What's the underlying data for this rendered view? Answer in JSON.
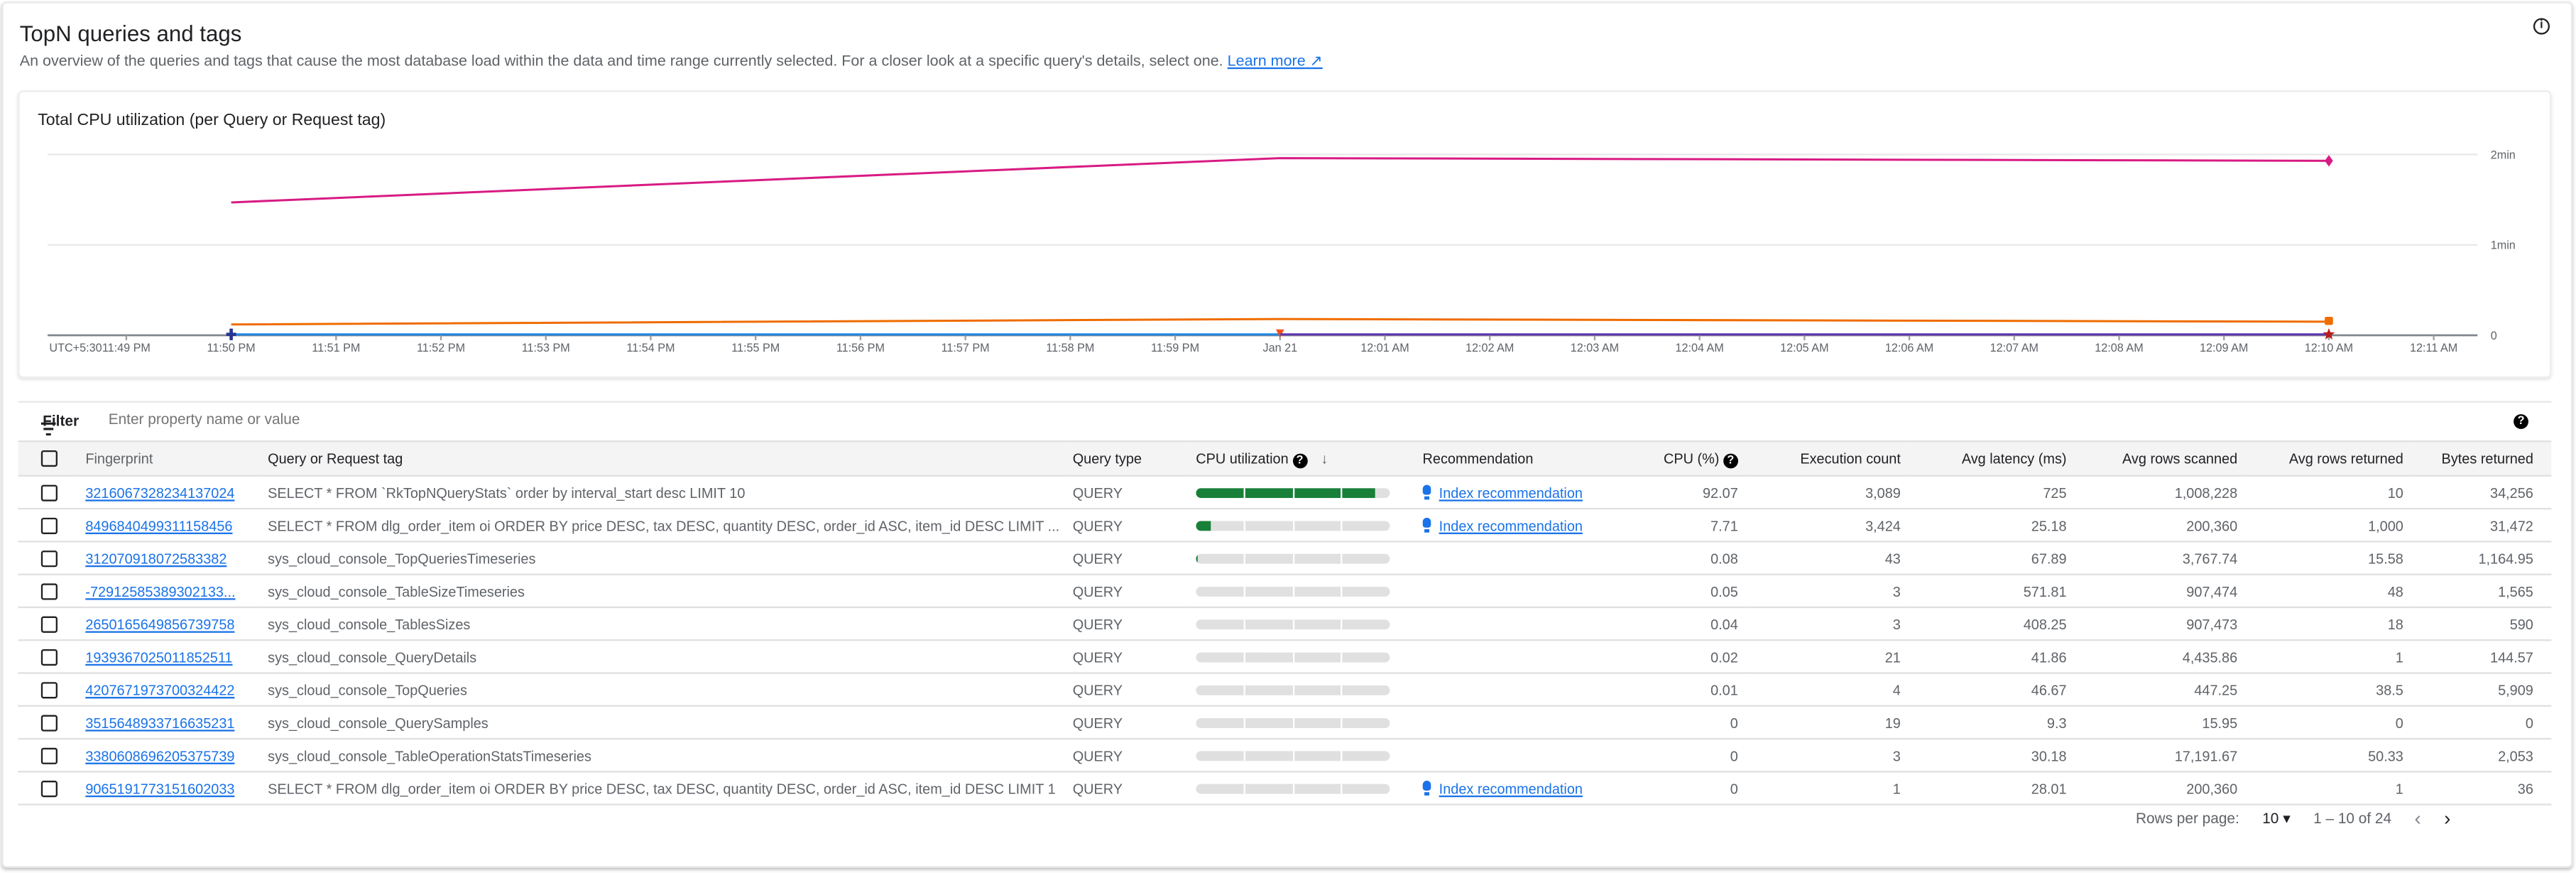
{
  "header": {
    "title": "TopN queries and tags",
    "description": "An overview of the queries and tags that cause the most database load within the data and time range currently selected. For a closer look at a specific query's details, select one.",
    "learn_more": "Learn more",
    "info_icon": "info-icon"
  },
  "chart_data": {
    "type": "line",
    "title": "Total CPU utilization (per Query or Request tag)",
    "timezone_label": "UTC+5:30",
    "x_ticks": [
      "11:49 PM",
      "11:50 PM",
      "11:51 PM",
      "11:52 PM",
      "11:53 PM",
      "11:54 PM",
      "11:55 PM",
      "11:56 PM",
      "11:57 PM",
      "11:58 PM",
      "11:59 PM",
      "Jan 21",
      "12:01 AM",
      "12:02 AM",
      "12:03 AM",
      "12:04 AM",
      "12:05 AM",
      "12:06 AM",
      "12:07 AM",
      "12:08 AM",
      "12:09 AM",
      "12:10 AM",
      "12:11 AM"
    ],
    "y_ticks": [
      "0",
      "1min",
      "2min"
    ],
    "y_unit": "min",
    "xlim": [
      "11:48:15 PM",
      "12:11:25 AM"
    ],
    "ylim": [
      0,
      2
    ],
    "grid": true,
    "series": [
      {
        "color": "#d81b84",
        "marker": "diamond",
        "x": [
          "11:50 PM",
          "Jan 21",
          "12:10 AM"
        ],
        "values": [
          1.47,
          1.96,
          1.93
        ]
      },
      {
        "color": "#ef6c00",
        "marker": "square",
        "x": [
          "11:50 PM",
          "Jan 21",
          "12:10 AM"
        ],
        "values": [
          0.12,
          0.18,
          0.15
        ]
      },
      {
        "color": "#1e88e5",
        "marker": "plus",
        "x": [
          "11:50 PM",
          "Jan 21"
        ],
        "values": [
          0.01,
          0.01
        ]
      },
      {
        "color": "#5e35b1",
        "marker": "star",
        "x": [
          "Jan 21",
          "12:10 AM"
        ],
        "values": [
          0.01,
          0.01
        ]
      }
    ]
  },
  "filter": {
    "label": "Filter",
    "placeholder": "Enter property name or value"
  },
  "table": {
    "columns": [
      "Fingerprint",
      "Query or Request tag",
      "Query type",
      "CPU utilization",
      "Recommendation",
      "CPU (%)",
      "Execution count",
      "Avg latency (ms)",
      "Avg rows scanned",
      "Avg rows returned",
      "Bytes returned"
    ],
    "rows": [
      {
        "fingerprint": "3216067328234137024",
        "query": "SELECT * FROM `RkTopNQueryStats` order by interval_start desc LIMIT 10",
        "type": "QUERY",
        "cpu_fraction": 0.9207,
        "recommendation": "Index recommendation",
        "cpu": "92.07",
        "exec": "3,089",
        "latency": "725",
        "scanned": "1,008,228",
        "returned": "10",
        "bytes": "34,256"
      },
      {
        "fingerprint": "8496840499311158456",
        "query": "SELECT * FROM dlg_order_item oi ORDER BY price DESC, tax DESC, quantity DESC, order_id ASC, item_id DESC LIMIT ...",
        "type": "QUERY",
        "cpu_fraction": 0.0771,
        "recommendation": "Index recommendation",
        "cpu": "7.71",
        "exec": "3,424",
        "latency": "25.18",
        "scanned": "200,360",
        "returned": "1,000",
        "bytes": "31,472"
      },
      {
        "fingerprint": "312070918072583382",
        "query": "sys_cloud_console_TopQueriesTimeseries",
        "type": "QUERY",
        "cpu_fraction": 0.0008,
        "recommendation": "",
        "cpu": "0.08",
        "exec": "43",
        "latency": "67.89",
        "scanned": "3,767.74",
        "returned": "15.58",
        "bytes": "1,164.95"
      },
      {
        "fingerprint": "-72912585389302133...",
        "query": "sys_cloud_console_TableSizeTimeseries",
        "type": "QUERY",
        "cpu_fraction": 0.0005,
        "recommendation": "",
        "cpu": "0.05",
        "exec": "3",
        "latency": "571.81",
        "scanned": "907,474",
        "returned": "48",
        "bytes": "1,565"
      },
      {
        "fingerprint": "2650165649856739758",
        "query": "sys_cloud_console_TablesSizes",
        "type": "QUERY",
        "cpu_fraction": 0.0004,
        "recommendation": "",
        "cpu": "0.04",
        "exec": "3",
        "latency": "408.25",
        "scanned": "907,473",
        "returned": "18",
        "bytes": "590"
      },
      {
        "fingerprint": "1939367025011852511",
        "query": "sys_cloud_console_QueryDetails",
        "type": "QUERY",
        "cpu_fraction": 0.0002,
        "recommendation": "",
        "cpu": "0.02",
        "exec": "21",
        "latency": "41.86",
        "scanned": "4,435.86",
        "returned": "1",
        "bytes": "144.57"
      },
      {
        "fingerprint": "4207671973700324422",
        "query": "sys_cloud_console_TopQueries",
        "type": "QUERY",
        "cpu_fraction": 0.0001,
        "recommendation": "",
        "cpu": "0.01",
        "exec": "4",
        "latency": "46.67",
        "scanned": "447.25",
        "returned": "38.5",
        "bytes": "5,909"
      },
      {
        "fingerprint": "3515648933716635231",
        "query": "sys_cloud_console_QuerySamples",
        "type": "QUERY",
        "cpu_fraction": 0,
        "recommendation": "",
        "cpu": "0",
        "exec": "19",
        "latency": "9.3",
        "scanned": "15.95",
        "returned": "0",
        "bytes": "0"
      },
      {
        "fingerprint": "3380608696205375739",
        "query": "sys_cloud_console_TableOperationStatsTimeseries",
        "type": "QUERY",
        "cpu_fraction": 0,
        "recommendation": "",
        "cpu": "0",
        "exec": "3",
        "latency": "30.18",
        "scanned": "17,191.67",
        "returned": "50.33",
        "bytes": "2,053"
      },
      {
        "fingerprint": "9065191773151602033",
        "query": "SELECT * FROM dlg_order_item oi ORDER BY price DESC, tax DESC, quantity DESC, order_id ASC, item_id DESC LIMIT 1",
        "type": "QUERY",
        "cpu_fraction": 0,
        "recommendation": "Index recommendation",
        "cpu": "0",
        "exec": "1",
        "latency": "28.01",
        "scanned": "200,360",
        "returned": "1",
        "bytes": "36"
      }
    ]
  },
  "pagination": {
    "rows_per_page_label": "Rows per page:",
    "rows_per_page": "10",
    "range": "1 – 10 of 24"
  },
  "colors": {
    "link": "#1a73e8",
    "bar_fill": "#188038",
    "bar_track": "#e0e0e0"
  }
}
